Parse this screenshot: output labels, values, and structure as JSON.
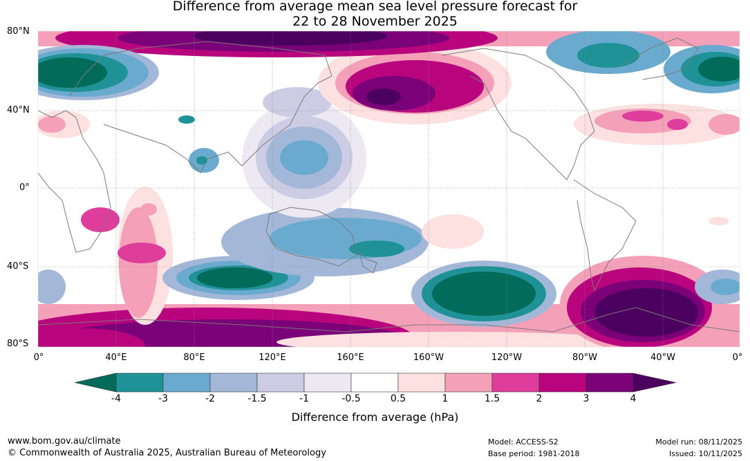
{
  "header": {
    "title_line1": "Difference from average mean sea level pressure forecast for",
    "title_line2": "22 to 28 November 2025"
  },
  "map": {
    "lat_labels": [
      "80°N",
      "40°N",
      "0°",
      "40°S",
      "80°S"
    ],
    "lon_labels": [
      "0°",
      "40°E",
      "80°E",
      "120°E",
      "160°E",
      "160°W",
      "120°W",
      "80°W",
      "40°W",
      "0°"
    ]
  },
  "colorbar": {
    "title": "Difference from average (hPa)",
    "tick_labels": [
      "-4",
      "-3",
      "-2",
      "-1.5",
      "-1",
      "-0.5",
      "0.5",
      "1",
      "1.5",
      "2",
      "3",
      "4"
    ],
    "colors": [
      "#036b59",
      "#1f9297",
      "#6aaacf",
      "#a3b8d8",
      "#cccde5",
      "#ece9f2",
      "#ffffff",
      "#fde0e0",
      "#f4a0b8",
      "#df3d9c",
      "#b8057e",
      "#7b0178",
      "#4b005f"
    ]
  },
  "footer": {
    "website": "www.bom.gov.au/climate",
    "copyright": "© Commonwealth of Australia 2025, Australian Bureau of Meteorology",
    "model": "Model: ACCESS-S2",
    "base_period": "Base period: 1981-2018",
    "model_run": "Model run: 08/11/2025",
    "issued": "Issued: 10/11/2025"
  }
}
